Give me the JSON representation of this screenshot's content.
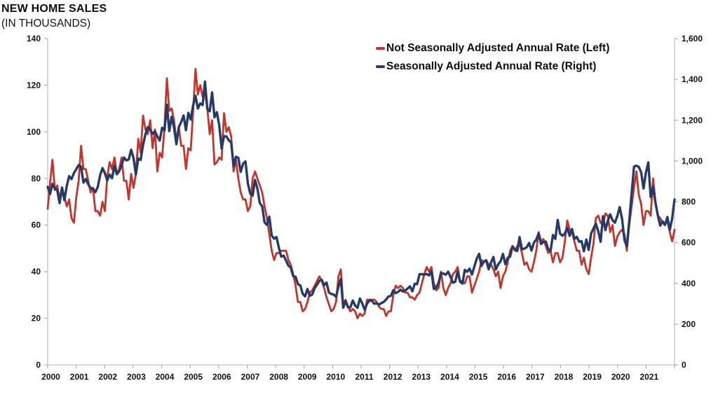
{
  "title": {
    "line1": "NEW HOME SALES",
    "line2": "(IN THOUSANDS)"
  },
  "legend": [
    {
      "label": "Not Seasonally Adjusted Annual Rate (Left)",
      "color": "#BE362E"
    },
    {
      "label": "Seasonally Adjusted Annual Rate (Right)",
      "color": "#263A67"
    }
  ],
  "left_axis": {
    "min": 0,
    "max": 140,
    "step": 20,
    "ticks": [
      "0",
      "20",
      "40",
      "60",
      "80",
      "100",
      "120",
      "140"
    ]
  },
  "right_axis": {
    "min": 0,
    "max": 1600,
    "step": 200,
    "ticks": [
      "0",
      "200",
      "400",
      "600",
      "800",
      "1,000",
      "1,200",
      "1,400",
      "1,600"
    ]
  },
  "x_axis": {
    "years": [
      "2000",
      "2001",
      "2002",
      "2003",
      "2004",
      "2005",
      "2006",
      "2007",
      "2008",
      "2009",
      "2010",
      "2011",
      "2012",
      "2013",
      "2014",
      "2015",
      "2016",
      "2017",
      "2018",
      "2019",
      "2020",
      "2021"
    ]
  },
  "colors": {
    "axis_line": "#BFBFBF",
    "tick_mark": "#ADADAD",
    "label": "#111111",
    "background": "#FFFFFF"
  },
  "chart_data": {
    "type": "line",
    "frequency": "monthly",
    "x_start": "2000-01",
    "x_end": "2021-12",
    "grid": false,
    "legend_position": "top-right-inside",
    "left_ylim": [
      0,
      140
    ],
    "right_ylim": [
      0,
      1600
    ],
    "series": [
      {
        "name": "Not Seasonally Adjusted Annual Rate (Left)",
        "axis": "left",
        "color": "#BE362E",
        "stroke_width": 2.8,
        "values": [
          67,
          78,
          88,
          75,
          77,
          71,
          76,
          72,
          68,
          71,
          63,
          61,
          72,
          79,
          94,
          84,
          84,
          79,
          74,
          76,
          66,
          66,
          64,
          70,
          66,
          81,
          87,
          84,
          89,
          82,
          84,
          89,
          79,
          79,
          71,
          82,
          76,
          82,
          97,
          91,
          107,
          101,
          99,
          105,
          93,
          101,
          83,
          91,
          89,
          102,
          123,
          109,
          110,
          105,
          96,
          102,
          94,
          94,
          84,
          93,
          92,
          109,
          127,
          116,
          120,
          115,
          117,
          110,
          99,
          105,
          86,
          87,
          89,
          88,
          108,
          100,
          102,
          98,
          83,
          88,
          80,
          74,
          71,
          71,
          66,
          68,
          80,
          83,
          80,
          77,
          74,
          68,
          63,
          56,
          49,
          45,
          48,
          48,
          49,
          49,
          49,
          45,
          43,
          39,
          34,
          27,
          27,
          23,
          24,
          27,
          31,
          32,
          34,
          36,
          38,
          36,
          33,
          29,
          26,
          23,
          24,
          27,
          38,
          41,
          26,
          28,
          25,
          23,
          24,
          23,
          20,
          22,
          21,
          22,
          28,
          28,
          28,
          28,
          27,
          25,
          24,
          24,
          21,
          23,
          23,
          30,
          34,
          33,
          34,
          33,
          31,
          31,
          29,
          29,
          28,
          30,
          31,
          35,
          39,
          42,
          40,
          42,
          35,
          32,
          33,
          40,
          33,
          30,
          33,
          35,
          39,
          40,
          42,
          36,
          36,
          35,
          38,
          38,
          31,
          34,
          37,
          40,
          45,
          44,
          45,
          43,
          43,
          41,
          38,
          40,
          33,
          38,
          40,
          44,
          49,
          51,
          49,
          51,
          52,
          48,
          43,
          44,
          41,
          40,
          44,
          49,
          57,
          53,
          54,
          51,
          48,
          49,
          44,
          48,
          48,
          44,
          46,
          53,
          62,
          58,
          57,
          53,
          49,
          49,
          43,
          46,
          41,
          39,
          46,
          52,
          63,
          64,
          61,
          60,
          65,
          64,
          57,
          60,
          51,
          55,
          57,
          58,
          56,
          49,
          60,
          68,
          76,
          83,
          73,
          69,
          60,
          66,
          66,
          64,
          80,
          70,
          64,
          63,
          61,
          60,
          62,
          57,
          53,
          58
        ]
      },
      {
        "name": "Seasonally Adjusted Annual Rate (Right)",
        "axis": "right",
        "color": "#263A67",
        "stroke_width": 3.4,
        "values": [
          873,
          838,
          888,
          864,
          857,
          793,
          870,
          808,
          877,
          926,
          911,
          940,
          960,
          980,
          972,
          894,
          912,
          886,
          867,
          865,
          847,
          872,
          930,
          965,
          940,
          905,
          933,
          915,
          977,
          935,
          950,
          978,
          1017,
          1003,
          1007,
          1055,
          1015,
          934,
          1012,
          1005,
          1078,
          1131,
          1166,
          1153,
          1133,
          1145,
          1120,
          1100,
          1163,
          1149,
          1276,
          1146,
          1217,
          1164,
          1082,
          1165,
          1191,
          1223,
          1151,
          1236,
          1203,
          1272,
          1320,
          1257,
          1282,
          1274,
          1389,
          1255,
          1244,
          1336,
          1214,
          1239,
          1174,
          1061,
          1121,
          1121,
          1101,
          1091,
          975,
          1021,
          1015,
          947,
          987,
          998,
          890,
          840,
          830,
          907,
          865,
          793,
          778,
          699,
          686,
          727,
          634,
          619,
          627,
          575,
          531,
          536,
          512,
          487,
          477,
          435,
          433,
          396,
          390,
          349,
          336,
          372,
          339,
          345,
          376,
          393,
          413,
          417,
          391,
          404,
          355,
          348,
          345,
          334,
          384,
          422,
          280,
          312,
          283,
          282,
          316,
          291,
          280,
          326,
          301,
          270,
          301,
          316,
          315,
          300,
          302,
          296,
          303,
          309,
          321,
          336,
          339,
          366,
          352,
          358,
          369,
          360,
          365,
          374,
          385,
          361,
          398,
          396,
          445,
          445,
          443,
          446,
          439,
          459,
          373,
          379,
          403,
          450,
          448,
          442,
          457,
          432,
          403,
          408,
          457,
          408,
          399,
          466,
          457,
          472,
          443,
          482,
          521,
          545,
          485,
          508,
          513,
          469,
          503,
          529,
          468,
          493,
          508,
          544,
          494,
          525,
          531,
          582,
          566,
          558,
          627,
          567,
          570,
          577,
          598,
          561,
          599,
          615,
          644,
          593,
          603,
          605,
          568,
          559,
          637,
          618,
          711,
          643,
          633,
          644,
          672,
          633,
          666,
          618,
          628,
          604,
          607,
          557,
          615,
          564,
          644,
          669,
          693,
          656,
          604,
          729,
          661,
          706,
          738,
          710,
          697,
          730,
          774,
          716,
          612,
          582,
          704,
          840,
          972,
          977,
          971,
          945,
          865,
          943,
          993,
          823,
          873,
          796,
          733,
          683,
          704,
          686,
          725,
          662,
          717,
          811
        ]
      }
    ]
  }
}
